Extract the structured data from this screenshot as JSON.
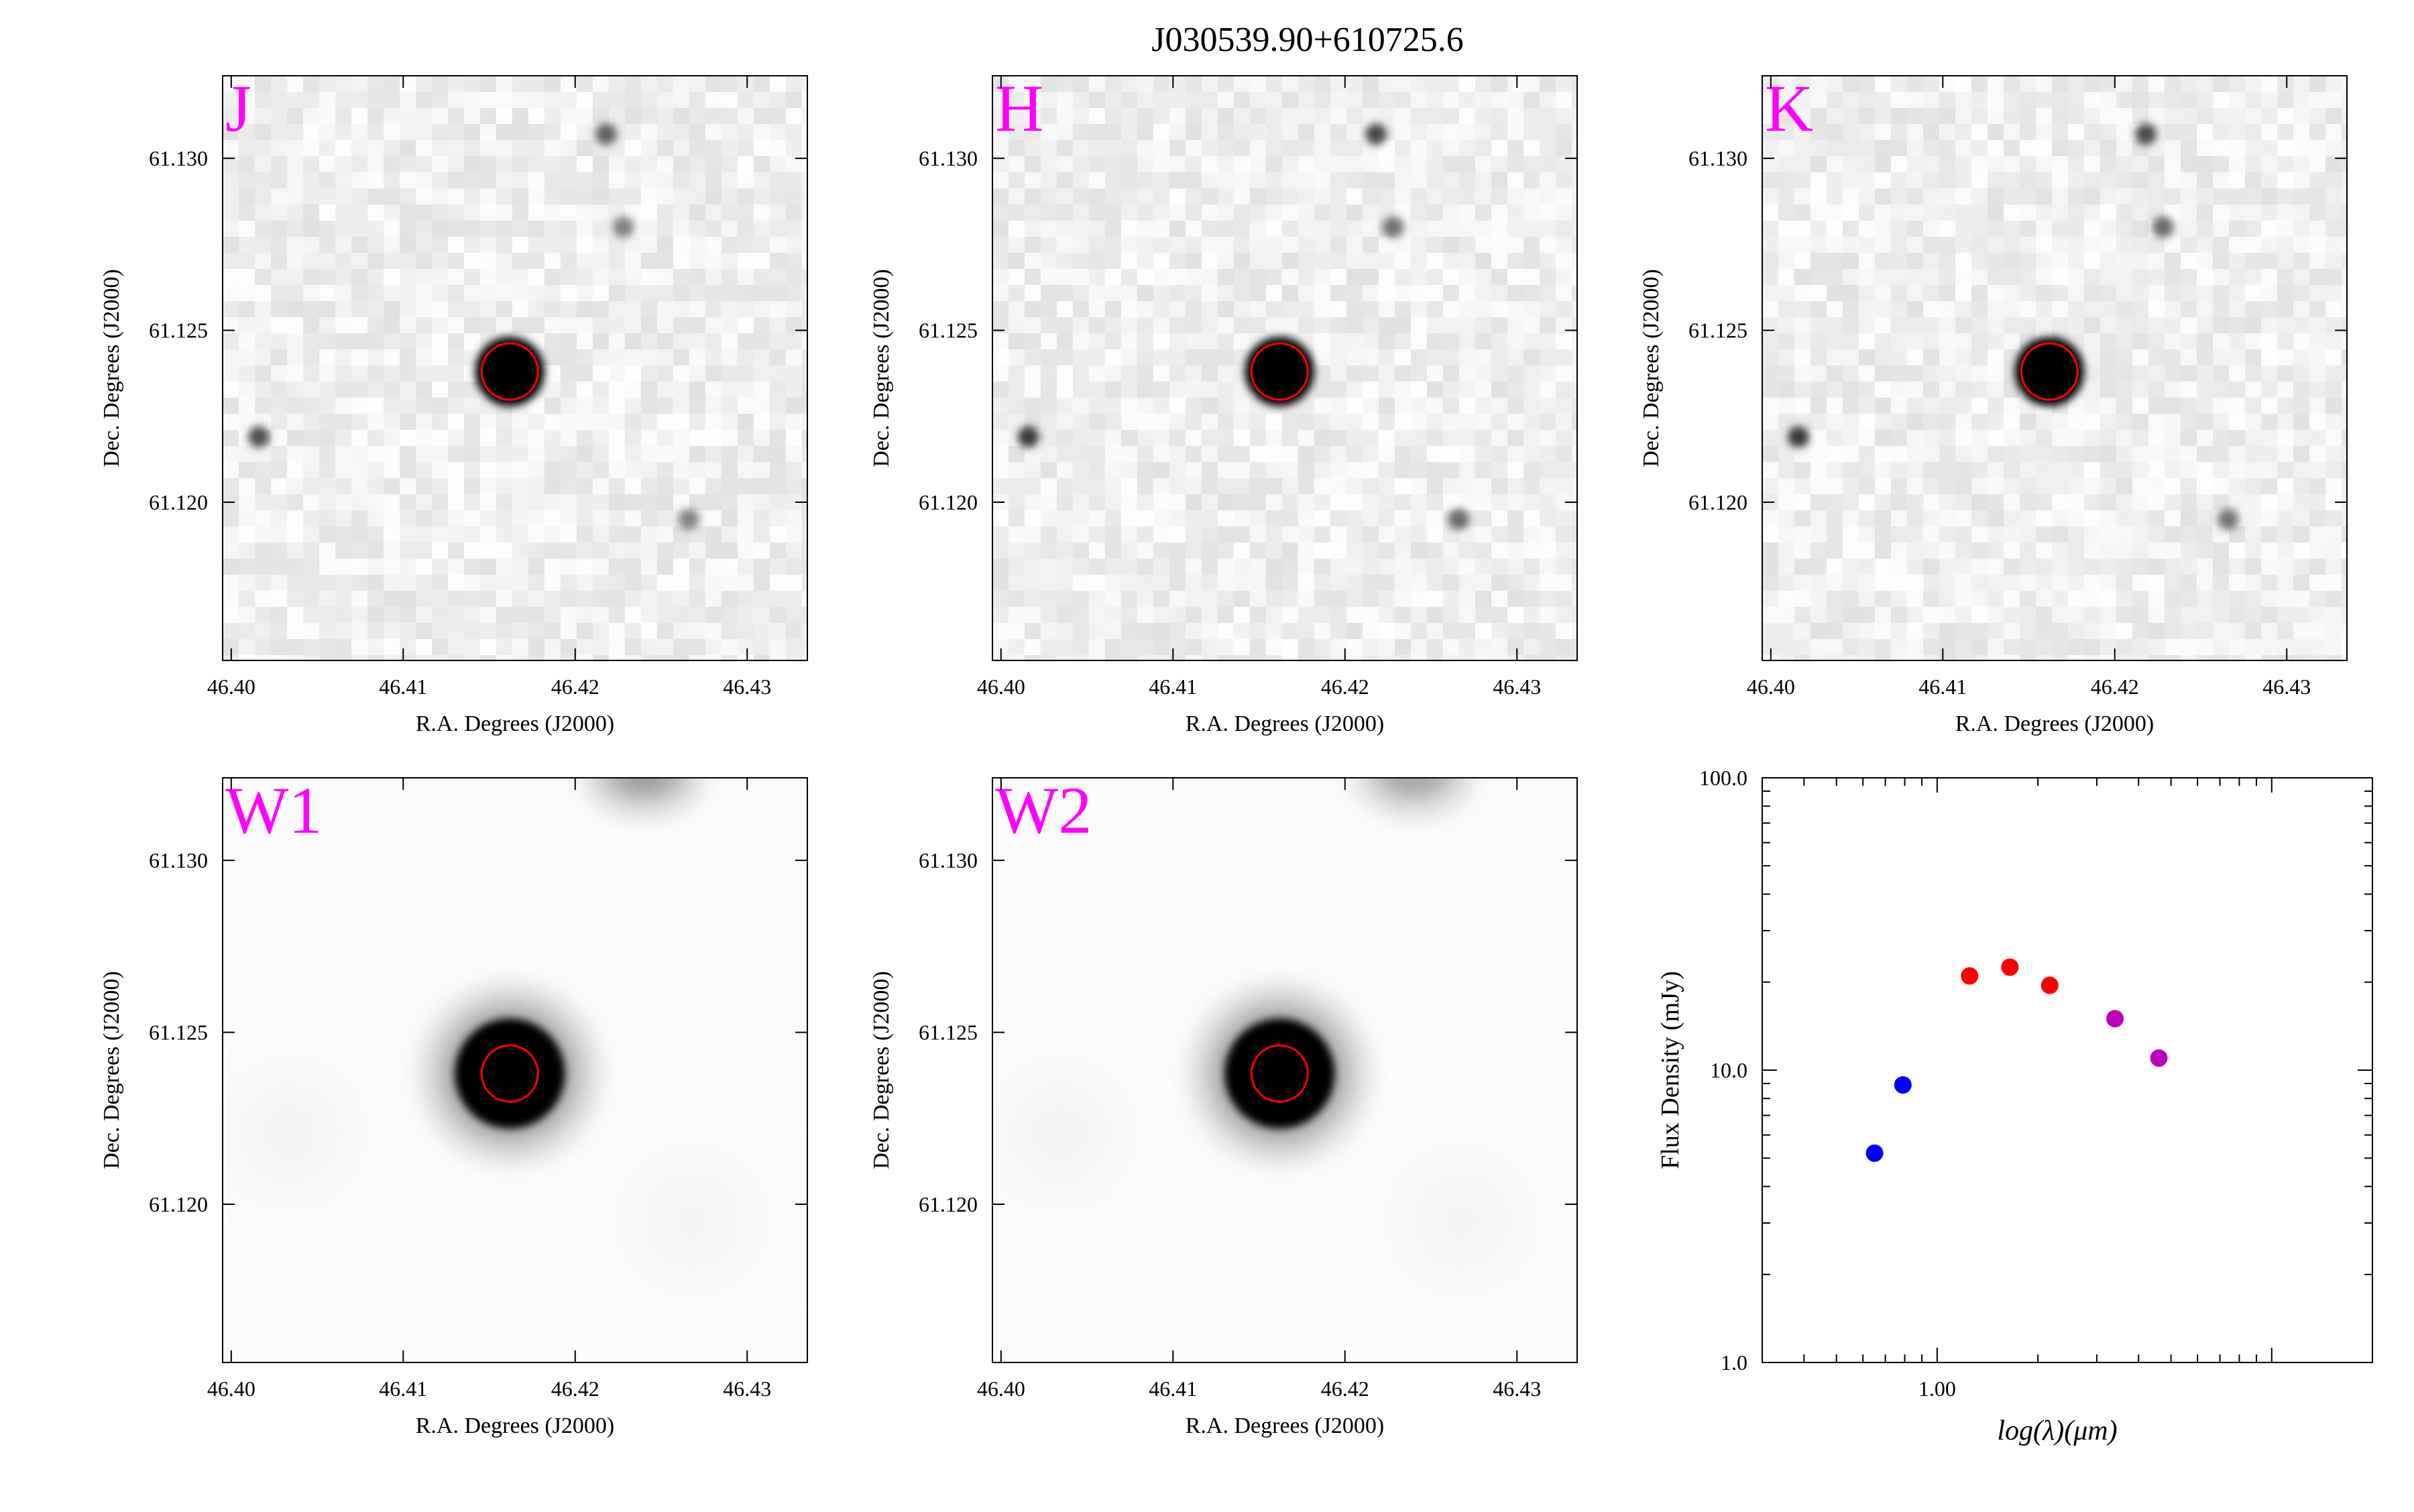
{
  "title": "J030539.90+610725.6",
  "colors": {
    "band_label": "#ff00ff",
    "aperture": "#ff0000",
    "sed_blue": "#0000ff",
    "sed_red": "#ff0000",
    "sed_purple": "#bb00bb",
    "background": "#ffffff",
    "frame": "#000000"
  },
  "panels": [
    {
      "band": "J",
      "xlabel": "R.A. Degrees (J2000)",
      "ylabel": "Dec. Degrees (J2000)"
    },
    {
      "band": "H",
      "xlabel": "R.A. Degrees (J2000)",
      "ylabel": "Dec. Degrees (J2000)"
    },
    {
      "band": "K",
      "xlabel": "R.A. Degrees (J2000)",
      "ylabel": "Dec. Degrees (J2000)"
    },
    {
      "band": "W1",
      "xlabel": "R.A. Degrees (J2000)",
      "ylabel": "Dec. Degrees (J2000)"
    },
    {
      "band": "W2",
      "xlabel": "R.A. Degrees (J2000)",
      "ylabel": "Dec. Degrees (J2000)"
    }
  ],
  "image_axes": {
    "x_ticks": [
      "46.40",
      "46.41",
      "46.42",
      "46.43"
    ],
    "y_ticks": [
      "61.120",
      "61.125",
      "61.130"
    ],
    "xlim": [
      46.3995,
      46.4335
    ],
    "ylim": [
      61.1154,
      61.1324
    ]
  },
  "chart_data": [
    {
      "type": "image",
      "band": "J",
      "xlabel": "R.A. Degrees (J2000)",
      "ylabel": "Dec. Degrees (J2000)",
      "xlim": [
        46.3995,
        46.4335
      ],
      "ylim": [
        61.1154,
        61.1324
      ],
      "target": {
        "ra": 46.4162,
        "dec": 61.1238
      },
      "sources": [
        {
          "ra": 46.4016,
          "dec": 61.1219,
          "strength": 0.7
        },
        {
          "ra": 46.4218,
          "dec": 61.1307,
          "strength": 0.6
        },
        {
          "ra": 46.4228,
          "dec": 61.128,
          "strength": 0.4
        },
        {
          "ra": 46.4266,
          "dec": 61.1195,
          "strength": 0.4
        }
      ]
    },
    {
      "type": "image",
      "band": "H",
      "xlabel": "R.A. Degrees (J2000)",
      "ylabel": "Dec. Degrees (J2000)",
      "xlim": [
        46.3995,
        46.4335
      ],
      "ylim": [
        61.1154,
        61.1324
      ],
      "target": {
        "ra": 46.4162,
        "dec": 61.1238
      },
      "sources": [
        {
          "ra": 46.4016,
          "dec": 61.1219,
          "strength": 0.85
        },
        {
          "ra": 46.4218,
          "dec": 61.1307,
          "strength": 0.75
        },
        {
          "ra": 46.4228,
          "dec": 61.128,
          "strength": 0.5
        },
        {
          "ra": 46.4266,
          "dec": 61.1195,
          "strength": 0.55
        }
      ]
    },
    {
      "type": "image",
      "band": "K",
      "xlabel": "R.A. Degrees (J2000)",
      "ylabel": "Dec. Degrees (J2000)",
      "xlim": [
        46.3995,
        46.4335
      ],
      "ylim": [
        61.1154,
        61.1324
      ],
      "target": {
        "ra": 46.4162,
        "dec": 61.1238
      },
      "sources": [
        {
          "ra": 46.4016,
          "dec": 61.1219,
          "strength": 0.85
        },
        {
          "ra": 46.4218,
          "dec": 61.1307,
          "strength": 0.75
        },
        {
          "ra": 46.4228,
          "dec": 61.128,
          "strength": 0.55
        },
        {
          "ra": 46.4266,
          "dec": 61.1195,
          "strength": 0.5
        }
      ]
    },
    {
      "type": "image",
      "band": "W1",
      "xlabel": "R.A. Degrees (J2000)",
      "ylabel": "Dec. Degrees (J2000)",
      "xlim": [
        46.3995,
        46.4335
      ],
      "ylim": [
        61.1154,
        61.1324
      ],
      "target": {
        "ra": 46.4162,
        "dec": 61.1238
      },
      "sources": [
        {
          "ra": 46.424,
          "dec": 61.1326,
          "strength": 0.35
        }
      ]
    },
    {
      "type": "image",
      "band": "W2",
      "xlabel": "R.A. Degrees (J2000)",
      "ylabel": "Dec. Degrees (J2000)",
      "xlim": [
        46.3995,
        46.4335
      ],
      "ylim": [
        61.1154,
        61.1324
      ],
      "target": {
        "ra": 46.4162,
        "dec": 61.1238
      },
      "sources": [
        {
          "ra": 46.424,
          "dec": 61.1326,
          "strength": 0.3
        }
      ]
    },
    {
      "type": "scatter",
      "xlabel": "log(λ)(μm)",
      "ylabel": "Flux Density (mJy)",
      "xscale": "log",
      "yscale": "log",
      "xlim": [
        0.3,
        20
      ],
      "ylim": [
        1.0,
        100.0
      ],
      "x_ticks": [
        "1.00"
      ],
      "y_ticks": [
        "1.0",
        "10.0",
        "100.0"
      ],
      "series": [
        {
          "color": "#0000ff",
          "x": [
            0.65,
            0.79
          ],
          "y": [
            5.2,
            8.9
          ]
        },
        {
          "color": "#ff0000",
          "x": [
            1.25,
            1.65,
            2.17
          ],
          "y": [
            21.0,
            22.5,
            19.5
          ]
        },
        {
          "color": "#bb00bb",
          "x": [
            3.4,
            4.6
          ],
          "y": [
            15.0,
            11.0
          ]
        }
      ]
    }
  ]
}
